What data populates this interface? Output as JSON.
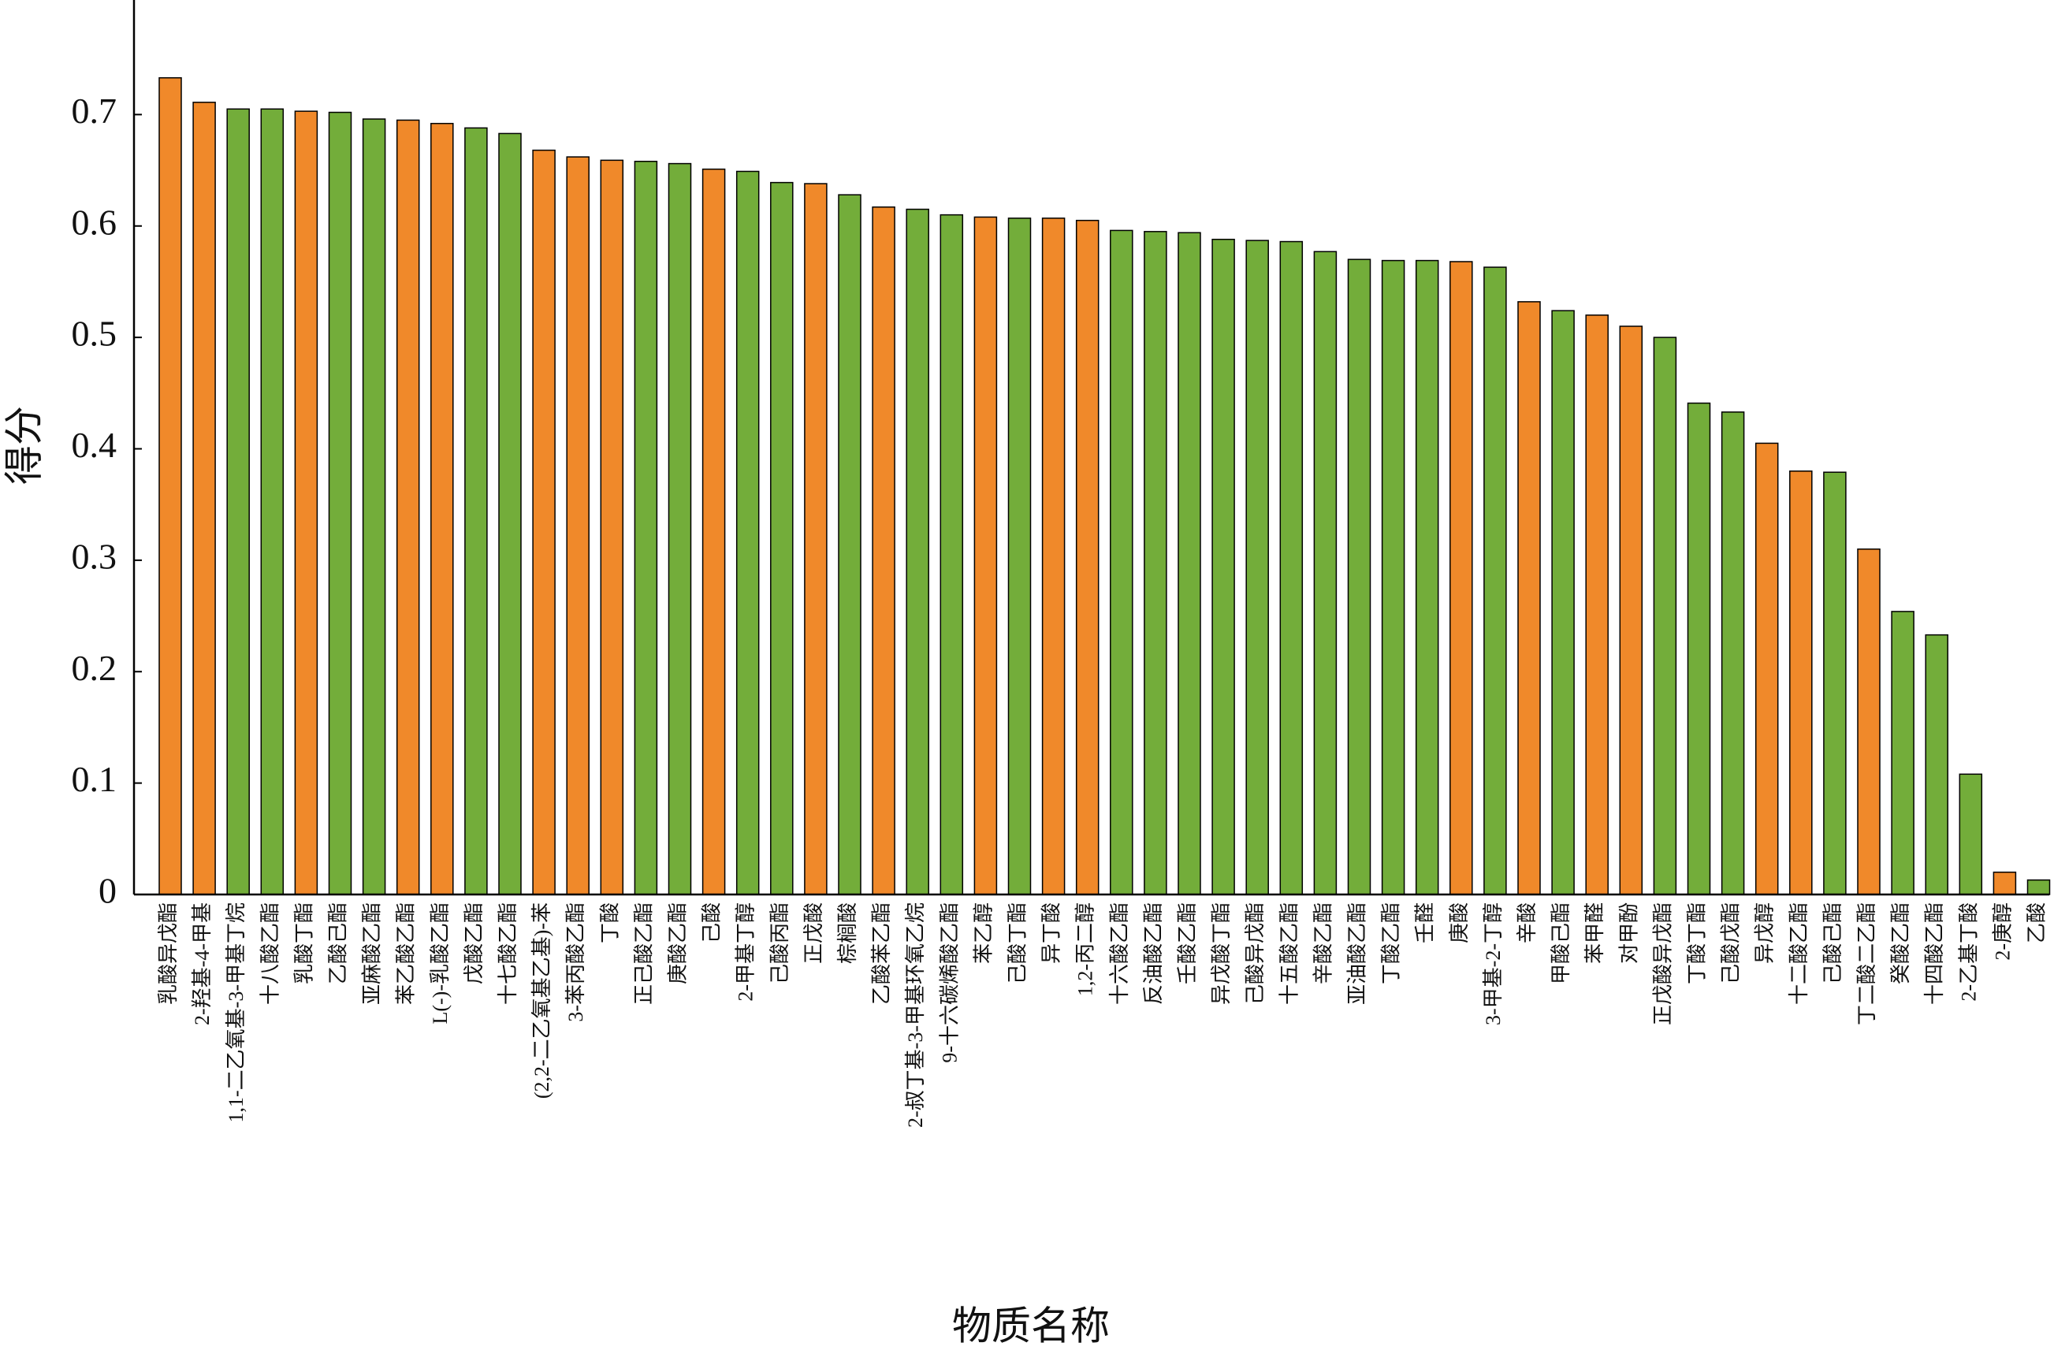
{
  "chart_data": {
    "type": "bar",
    "x_label": "物质名称",
    "y_label": "得分",
    "categories": [
      "乳酸异戊酯",
      "2-羟基-4-甲基",
      "1,1-二乙氧基-3-甲基丁烷",
      "十八酸乙酯",
      "乳酸丁酯",
      "乙酸己酯",
      "亚麻酸乙酯",
      "苯乙酸乙酯",
      "L(-)-乳酸乙酯",
      "戊酸乙酯",
      "十七酸乙酯",
      "(2,2-二乙氧基乙基)-苯",
      "3-苯丙酸乙酯",
      "丁酸",
      "正己酸乙酯",
      "庚酸乙酯",
      "己酸",
      "2-甲基丁醇",
      "己酸丙酯",
      "正戊酸",
      "棕榈酸",
      "乙酸苯乙酯",
      "2-叔丁基-3-甲基环氧乙烷",
      "9-十六碳烯酸乙酯",
      "苯乙醇",
      "己酸丁酯",
      "异丁酸",
      "1,2-丙二醇",
      "十六酸乙酯",
      "反油酸乙酯",
      "壬酸乙酯",
      "异戊酸丁酯",
      "己酸异戊酯",
      "十五酸乙酯",
      "辛酸乙酯",
      "亚油酸乙酯",
      "丁酸乙酯",
      "壬醛",
      "庚酸",
      "3-甲基-2-丁醇",
      "辛酸",
      "甲酸己酯",
      "苯甲醛",
      "对甲酚",
      "正戊酸异戊酯",
      "丁酸丁酯",
      "己酸戊酯",
      "异戊醇",
      "十二酸乙酯",
      "己酸己酯",
      "丁二酸二乙酯",
      "癸酸乙酯",
      "十四酸乙酯",
      "2-乙基丁酸",
      "2-庚醇",
      "乙酸"
    ],
    "values": [
      0.733,
      0.711,
      0.705,
      0.705,
      0.703,
      0.702,
      0.696,
      0.695,
      0.692,
      0.688,
      0.683,
      0.668,
      0.662,
      0.659,
      0.658,
      0.656,
      0.651,
      0.649,
      0.639,
      0.638,
      0.628,
      0.617,
      0.615,
      0.61,
      0.608,
      0.607,
      0.607,
      0.605,
      0.596,
      0.595,
      0.594,
      0.588,
      0.587,
      0.586,
      0.577,
      0.57,
      0.569,
      0.569,
      0.568,
      0.563,
      0.532,
      0.524,
      0.52,
      0.51,
      0.5,
      0.441,
      0.433,
      0.405,
      0.38,
      0.379,
      0.31,
      0.254,
      0.233,
      0.108,
      0.02,
      0.013
    ],
    "colors": [
      "#f0892a",
      "#f0892a",
      "#73ad3a",
      "#73ad3a",
      "#f0892a",
      "#73ad3a",
      "#73ad3a",
      "#f0892a",
      "#f0892a",
      "#73ad3a",
      "#73ad3a",
      "#f0892a",
      "#f0892a",
      "#f0892a",
      "#73ad3a",
      "#73ad3a",
      "#f0892a",
      "#73ad3a",
      "#73ad3a",
      "#f0892a",
      "#73ad3a",
      "#f0892a",
      "#73ad3a",
      "#73ad3a",
      "#f0892a",
      "#73ad3a",
      "#f0892a",
      "#f0892a",
      "#73ad3a",
      "#73ad3a",
      "#73ad3a",
      "#73ad3a",
      "#73ad3a",
      "#73ad3a",
      "#73ad3a",
      "#73ad3a",
      "#73ad3a",
      "#73ad3a",
      "#f0892a",
      "#73ad3a",
      "#f0892a",
      "#73ad3a",
      "#f0892a",
      "#f0892a",
      "#73ad3a",
      "#73ad3a",
      "#73ad3a",
      "#f0892a",
      "#f0892a",
      "#73ad3a",
      "#f0892a",
      "#73ad3a",
      "#73ad3a",
      "#73ad3a",
      "#f0892a",
      "#73ad3a"
    ],
    "ylim": [
      0,
      0.8
    ],
    "yticks": [
      0,
      0.1,
      0.2,
      0.3,
      0.4,
      0.5,
      0.6,
      0.7
    ],
    "grid": false
  }
}
